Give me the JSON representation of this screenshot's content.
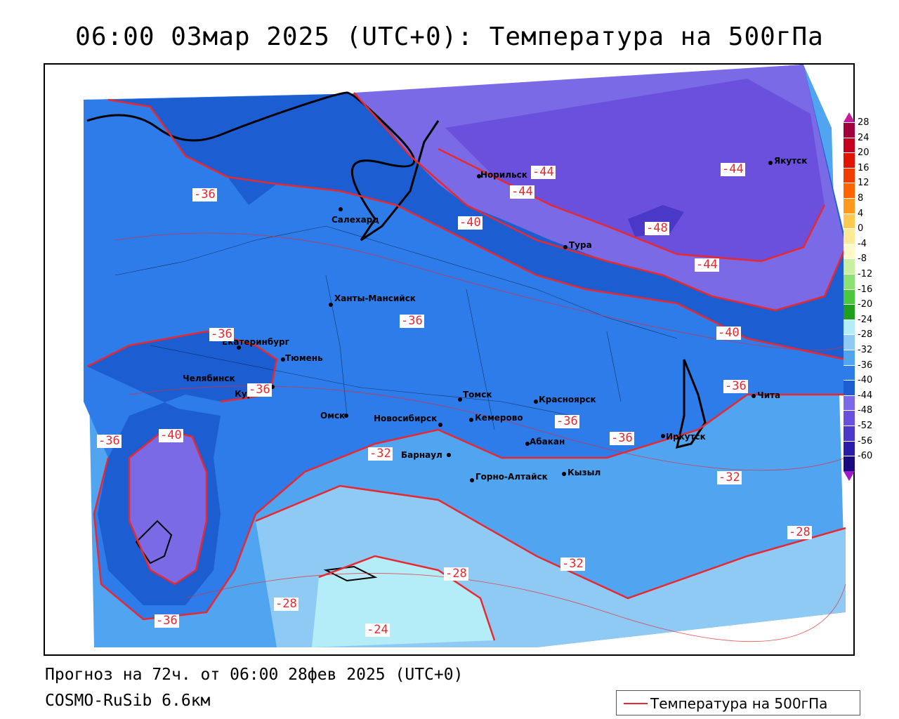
{
  "title": "06:00 03мар 2025 (UTC+0): Температура на 500гПа",
  "footer": {
    "forecast": "Прогноз на 72ч. от 06:00 28фев 2025 (UTC+0)",
    "model": "COSMO-RuSib 6.6км"
  },
  "legend": {
    "label": "Температура на 500гПа",
    "color": "#e8282f"
  },
  "colors": {
    "isoline": "#e8282f",
    "coast": "#000000"
  },
  "scale": [
    {
      "value": "28",
      "color": "#a0003c"
    },
    {
      "value": "24",
      "color": "#c4001e"
    },
    {
      "value": "20",
      "color": "#e01400"
    },
    {
      "value": "16",
      "color": "#f03c00"
    },
    {
      "value": "12",
      "color": "#ff6400"
    },
    {
      "value": "8",
      "color": "#ff9a1e"
    },
    {
      "value": "4",
      "color": "#ffc850"
    },
    {
      "value": "0",
      "color": "#ffe896"
    },
    {
      "value": "-4",
      "color": "#fff8c8"
    },
    {
      "value": "-8",
      "color": "#c8f0a0"
    },
    {
      "value": "-12",
      "color": "#8ee070"
    },
    {
      "value": "-16",
      "color": "#4cc83c"
    },
    {
      "value": "-20",
      "color": "#1ea01e"
    },
    {
      "value": "-24",
      "color": "#b4ecf8"
    },
    {
      "value": "-28",
      "color": "#8ecaf4"
    },
    {
      "value": "-32",
      "color": "#50a4f0"
    },
    {
      "value": "-36",
      "color": "#2e7cea"
    },
    {
      "value": "-40",
      "color": "#1c5ed2"
    },
    {
      "value": "-44",
      "color": "#7a6ae6"
    },
    {
      "value": "-48",
      "color": "#6a50dc"
    },
    {
      "value": "-52",
      "color": "#4a38c8"
    },
    {
      "value": "-56",
      "color": "#2a1ca8"
    },
    {
      "value": "-60",
      "color": "#1a0a80"
    }
  ],
  "cities": [
    {
      "name": "Норильск"
    },
    {
      "name": "Якутск"
    },
    {
      "name": "Салехард"
    },
    {
      "name": "Тура"
    },
    {
      "name": "Ханты-Мансийск"
    },
    {
      "name": "Екатеринбург"
    },
    {
      "name": "Тюмень"
    },
    {
      "name": "Челябинск"
    },
    {
      "name": "Курган"
    },
    {
      "name": "Омск"
    },
    {
      "name": "Томск"
    },
    {
      "name": "Красноярск"
    },
    {
      "name": "Новосибирск"
    },
    {
      "name": "Кемерово"
    },
    {
      "name": "Абакан"
    },
    {
      "name": "Иркутск"
    },
    {
      "name": "Барнаул"
    },
    {
      "name": "Горно-Алтайск"
    },
    {
      "name": "Кызыл"
    },
    {
      "name": "Чита"
    }
  ],
  "isolines": [
    {
      "value": "-44"
    },
    {
      "value": "-44"
    },
    {
      "value": "-44"
    },
    {
      "value": "-36"
    },
    {
      "value": "-40"
    },
    {
      "value": "-48"
    },
    {
      "value": "-44"
    },
    {
      "value": "-36"
    },
    {
      "value": "-36"
    },
    {
      "value": "-40"
    },
    {
      "value": "-36"
    },
    {
      "value": "-36"
    },
    {
      "value": "-36"
    },
    {
      "value": "-40"
    },
    {
      "value": "-32"
    },
    {
      "value": "-36"
    },
    {
      "value": "-36"
    },
    {
      "value": "-32"
    },
    {
      "value": "-28"
    },
    {
      "value": "-32"
    },
    {
      "value": "-28"
    },
    {
      "value": "-28"
    },
    {
      "value": "-24"
    },
    {
      "value": "-36"
    }
  ]
}
